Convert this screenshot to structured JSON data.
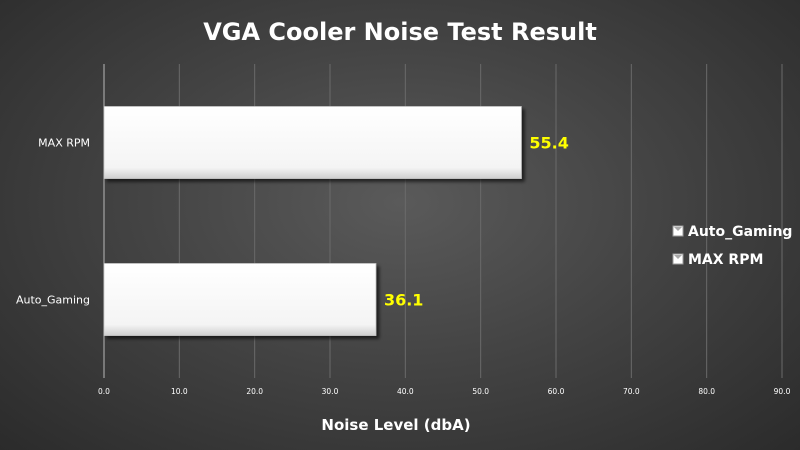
{
  "chart_data": {
    "type": "bar",
    "orientation": "horizontal",
    "title": "VGA Cooler Noise Test Result",
    "xlabel": "Noise Level (dbA)",
    "ylabel": "",
    "categories": [
      "Auto_Gaming",
      "MAX RPM"
    ],
    "values": [
      36.1,
      55.4
    ],
    "value_labels": [
      "36.1",
      "55.4"
    ],
    "xlim": [
      0,
      90
    ],
    "x_ticks": [
      "0.0",
      "10.0",
      "20.0",
      "30.0",
      "40.0",
      "50.0",
      "60.0",
      "70.0",
      "80.0",
      "90.0"
    ],
    "legend": {
      "placement": "right",
      "entries": [
        "Auto_Gaming",
        "MAX RPM"
      ]
    },
    "grid": true,
    "colors": {
      "bar_fill": "#ffffff",
      "value_label": "#ffff00",
      "text": "#ffffff",
      "gridline": "#6a6a6a"
    }
  }
}
